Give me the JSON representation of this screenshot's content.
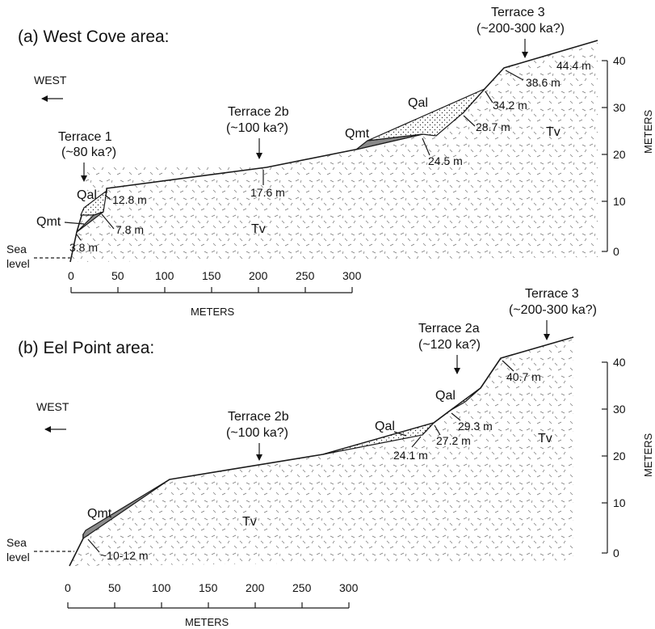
{
  "panel_a": {
    "title": "(a) West Cove area:",
    "west": "WEST",
    "sea_level_1": "Sea",
    "sea_level_2": "level",
    "x_axis_title": "METERS",
    "y_axis_title": "METERS",
    "x_ticks": [
      "0",
      "50",
      "100",
      "150",
      "200",
      "250",
      "300"
    ],
    "y_ticks": [
      "0",
      "10",
      "20",
      "30",
      "40"
    ],
    "terrace1_name": "Terrace 1",
    "terrace1_age": "(~80 ka?)",
    "terrace2b_name": "Terrace 2b",
    "terrace2b_age": "(~100 ka?)",
    "terrace3_name": "Terrace 3",
    "terrace3_age": "(~200-300 ka?)",
    "units": {
      "qal_left": "Qal",
      "qmt_left": "Qmt",
      "tv_left": "Tv",
      "qmt_mid": "Qmt",
      "qal_mid": "Qal",
      "tv_right": "Tv"
    },
    "elevations": [
      "3.8 m",
      "7.8 m",
      "12.8 m",
      "17.6 m",
      "24.5 m",
      "28.7 m",
      "34.2 m",
      "38.6 m",
      "44.4 m"
    ]
  },
  "panel_b": {
    "title": "(b) Eel Point area:",
    "west": "WEST",
    "sea_level_1": "Sea",
    "sea_level_2": "level",
    "x_axis_title": "METERS",
    "y_axis_title": "METERS",
    "x_ticks": [
      "0",
      "50",
      "100",
      "150",
      "200",
      "250",
      "300"
    ],
    "y_ticks": [
      "0",
      "10",
      "20",
      "30",
      "40"
    ],
    "terrace2b_name": "Terrace 2b",
    "terrace2b_age": "(~100 ka?)",
    "terrace2a_name": "Terrace 2a",
    "terrace2a_age": "(~120 ka?)",
    "terrace3_name": "Terrace 3",
    "terrace3_age": "(~200-300 ka?)",
    "units": {
      "qmt_left": "Qmt",
      "tv_left": "Tv",
      "qal_mid": "Qal",
      "qal_right": "Qal",
      "tv_right": "Tv"
    },
    "elevations": [
      "~10-12 m",
      "24.1 m",
      "27.2 m",
      "29.3 m",
      "40.7 m"
    ]
  }
}
